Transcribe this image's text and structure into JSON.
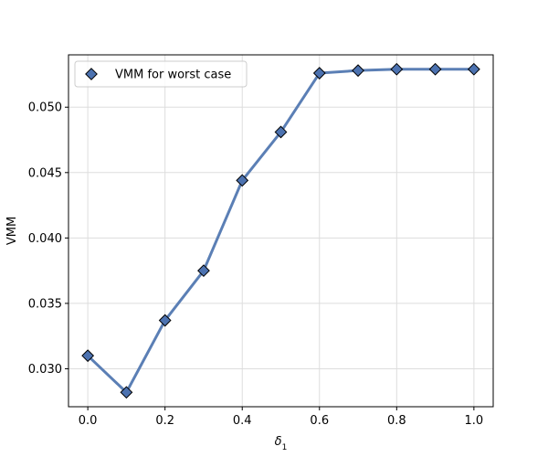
{
  "chart_data": {
    "type": "line",
    "xlabel_base": "δ",
    "xlabel_sub": "1",
    "ylabel": "VMM",
    "xlim": [
      -0.05,
      1.05
    ],
    "ylim": [
      0.0271,
      0.054
    ],
    "xticks": [
      0.0,
      0.2,
      0.4,
      0.6,
      0.8,
      1.0
    ],
    "xtick_labels": [
      "0.0",
      "0.2",
      "0.4",
      "0.6",
      "0.8",
      "1.0"
    ],
    "yticks": [
      0.03,
      0.035,
      0.04,
      0.045,
      0.05
    ],
    "ytick_labels": [
      "0.030",
      "0.035",
      "0.040",
      "0.045",
      "0.050"
    ],
    "grid": true,
    "legend_position": "top-left",
    "line_color": "#5b7fb5",
    "marker_color": "#4c72b0",
    "series": [
      {
        "name": "VMM for worst case",
        "x": [
          0.0,
          0.1,
          0.2,
          0.3,
          0.4,
          0.5,
          0.6,
          0.7,
          0.8,
          0.9,
          1.0
        ],
        "y": [
          0.031,
          0.0282,
          0.0337,
          0.0375,
          0.0444,
          0.0481,
          0.0526,
          0.0528,
          0.0529,
          0.0529,
          0.0529
        ]
      }
    ]
  }
}
